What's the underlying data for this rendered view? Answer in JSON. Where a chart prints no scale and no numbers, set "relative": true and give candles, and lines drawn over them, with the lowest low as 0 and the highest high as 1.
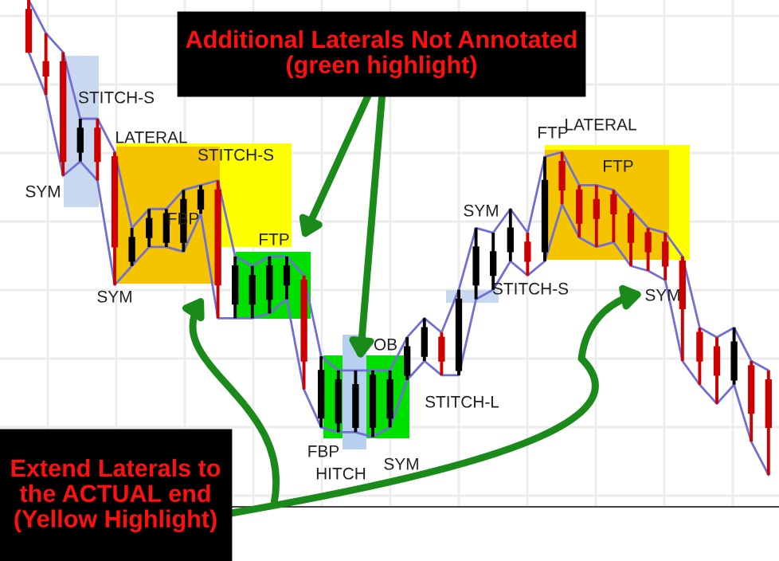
{
  "chart_data": {
    "type": "candlestick",
    "relative": true,
    "grid": true,
    "categories": [
      null,
      null,
      null,
      null,
      null,
      null,
      null,
      null,
      null,
      null,
      null,
      null,
      null,
      null,
      null,
      null,
      null,
      null,
      null,
      null,
      null,
      null,
      null,
      null,
      null,
      null,
      null,
      null,
      null,
      null,
      null,
      null,
      null,
      null,
      null,
      null,
      null,
      null,
      null,
      null,
      null,
      null,
      null,
      null
    ],
    "ohlc": [
      [
        0.98,
        1,
        0.89,
        0.89
      ],
      [
        0.87,
        0.93,
        0.8,
        0.84
      ],
      [
        0.87,
        0.89,
        0.63,
        0.66
      ],
      [
        0.68,
        0.75,
        0.66,
        0.73
      ],
      [
        0.73,
        0.75,
        0.62,
        0.66
      ],
      [
        0.67,
        0.68,
        0.4,
        0.48
      ],
      [
        0.45,
        0.52,
        0.44,
        0.5
      ],
      [
        0.5,
        0.56,
        0.48,
        0.54
      ],
      [
        0.49,
        0.56,
        0.48,
        0.55
      ],
      [
        0.49,
        0.6,
        0.47,
        0.58
      ],
      [
        0.56,
        0.61,
        0.55,
        0.6
      ],
      [
        0.6,
        0.62,
        0.33,
        0.4
      ],
      [
        0.36,
        0.46,
        0.33,
        0.44
      ],
      [
        0.36,
        0.44,
        0.33,
        0.42
      ],
      [
        0.37,
        0.46,
        0.34,
        0.44
      ],
      [
        0.4,
        0.46,
        0.37,
        0.44
      ],
      [
        0.41,
        0.42,
        0.18,
        0.24
      ],
      [
        0.12,
        0.25,
        0.1,
        0.22
      ],
      [
        0.11,
        0.22,
        0.09,
        0.2
      ],
      [
        0.1,
        0.22,
        0.09,
        0.19
      ],
      [
        0.1,
        0.22,
        0.08,
        0.21
      ],
      [
        0.12,
        0.22,
        0.1,
        0.2
      ],
      [
        0.21,
        0.29,
        0.2,
        0.27
      ],
      [
        0.25,
        0.33,
        0.24,
        0.31
      ],
      [
        0.29,
        0.3,
        0.21,
        0.24
      ],
      [
        0.22,
        0.39,
        0.21,
        0.37
      ],
      [
        0.4,
        0.52,
        0.37,
        0.48
      ],
      [
        0.42,
        0.51,
        0.39,
        0.47
      ],
      [
        0.47,
        0.56,
        0.45,
        0.52
      ],
      [
        0.49,
        0.51,
        0.42,
        0.45
      ],
      [
        0.47,
        0.67,
        0.45,
        0.62
      ],
      [
        0.66,
        0.68,
        0.57,
        0.6
      ],
      [
        0.6,
        0.61,
        0.5,
        0.53
      ],
      [
        0.58,
        0.61,
        0.48,
        0.54
      ],
      [
        0.59,
        0.6,
        0.49,
        0.55
      ],
      [
        0.55,
        0.56,
        0.44,
        0.49
      ],
      [
        0.51,
        0.52,
        0.43,
        0.47
      ],
      [
        0.49,
        0.51,
        0.41,
        0.44
      ],
      [
        0.45,
        0.46,
        0.24,
        0.35
      ],
      [
        0.3,
        0.31,
        0.19,
        0.24
      ],
      [
        0.27,
        0.29,
        0.15,
        0.21
      ],
      [
        0.2,
        0.31,
        0.19,
        0.28
      ],
      [
        0.23,
        0.24,
        0.07,
        0.13
      ],
      [
        0.2,
        0.22,
        0,
        0.1
      ]
    ],
    "colors": [
      "#cc0000",
      "#cc0000",
      "#cc0000",
      "#000000",
      "#cc0000",
      "#cc0000",
      "#000000",
      "#000000",
      "#000000",
      "#000000",
      "#000000",
      "#cc0000",
      "#000000",
      "#000000",
      "#000000",
      "#000000",
      "#cc0000",
      "#000000",
      "#000000",
      "#000000",
      "#000000",
      "#000000",
      "#000000",
      "#000000",
      "#cc0000",
      "#000000",
      "#000000",
      "#000000",
      "#000000",
      "#cc0000",
      "#000000",
      "#cc0000",
      "#cc0000",
      "#cc0000",
      "#cc0000",
      "#cc0000",
      "#cc0000",
      "#cc0000",
      "#cc0000",
      "#cc0000",
      "#cc0000",
      "#000000",
      "#cc0000",
      "#cc0000"
    ],
    "series": [
      {
        "type": "line",
        "color": "#6f6fd6",
        "values": [
          1,
          0.93,
          0.89,
          0.75,
          0.75,
          0.68,
          0.52,
          0.56,
          0.56,
          0.6,
          0.61,
          0.62,
          0.46,
          0.44,
          0.46,
          0.46,
          0.42,
          0.25,
          0.22,
          0.22,
          0.22,
          0.22,
          0.29,
          0.33,
          0.3,
          0.39,
          0.52,
          0.51,
          0.56,
          0.51,
          0.67,
          0.68,
          0.61,
          0.61,
          0.6,
          0.56,
          0.52,
          0.51,
          0.46,
          0.31,
          0.29,
          0.31,
          0.24,
          0.22
        ]
      },
      {
        "type": "line",
        "color": "#6f6fd6",
        "values": [
          0.89,
          0.8,
          0.63,
          0.66,
          0.62,
          0.4,
          0.44,
          0.48,
          0.48,
          0.47,
          0.55,
          0.33,
          0.33,
          0.33,
          0.34,
          0.37,
          0.18,
          0.1,
          0.09,
          0.09,
          0.08,
          0.1,
          0.2,
          0.24,
          0.21,
          0.21,
          0.37,
          0.39,
          0.45,
          0.42,
          0.45,
          0.57,
          0.5,
          0.48,
          0.49,
          0.44,
          0.43,
          0.41,
          0.24,
          0.19,
          0.15,
          0.19,
          0.07,
          0
        ]
      }
    ],
    "annotations": [
      "SYM",
      "STITCH-S",
      "LATERAL",
      "STITCH-S",
      "FBP",
      "SYM",
      "FTP",
      "OB",
      "FBP",
      "HITCH",
      "SYM",
      "STITCH-L",
      "SYM",
      "FTP",
      "LATERAL",
      "FTP",
      "STITCH-S",
      "SYM",
      "Additional Laterals Not Annotated\n(green highlight)",
      "Extend Laterals to\nthe ACTUAL end\n(Yellow Highlight)"
    ]
  }
}
